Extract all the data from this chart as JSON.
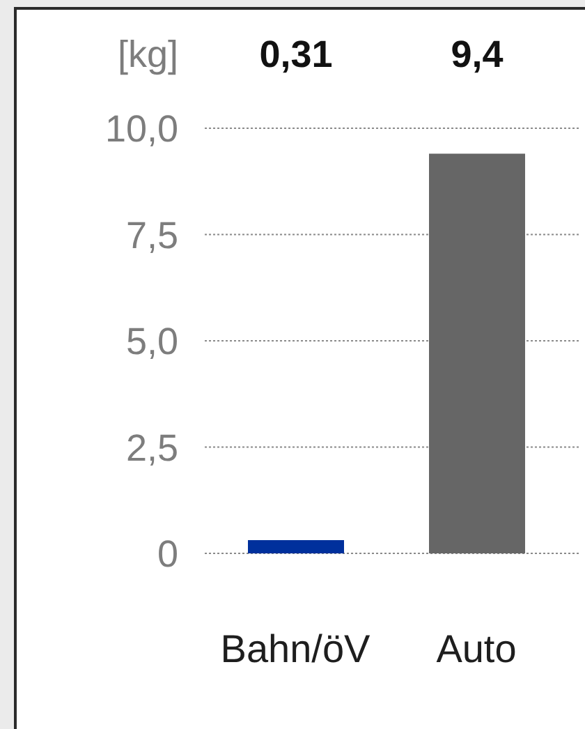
{
  "chart_data": {
    "type": "bar",
    "ylabel": "[kg]",
    "categories": [
      "Bahn/öV",
      "Auto"
    ],
    "values": [
      0.31,
      9.4
    ],
    "colors": [
      "#00309c",
      "#666666"
    ],
    "value_labels": [
      "0,31",
      "9,4"
    ],
    "ylim": [
      0,
      10
    ],
    "yticks": [
      0,
      {
        "value": 2.5,
        "label": "2,5"
      },
      {
        "value": 5,
        "label": "5,0"
      },
      {
        "value": 7.5,
        "label": "7,5"
      },
      {
        "value": 10,
        "label": "10,0"
      }
    ],
    "grid": "y"
  }
}
